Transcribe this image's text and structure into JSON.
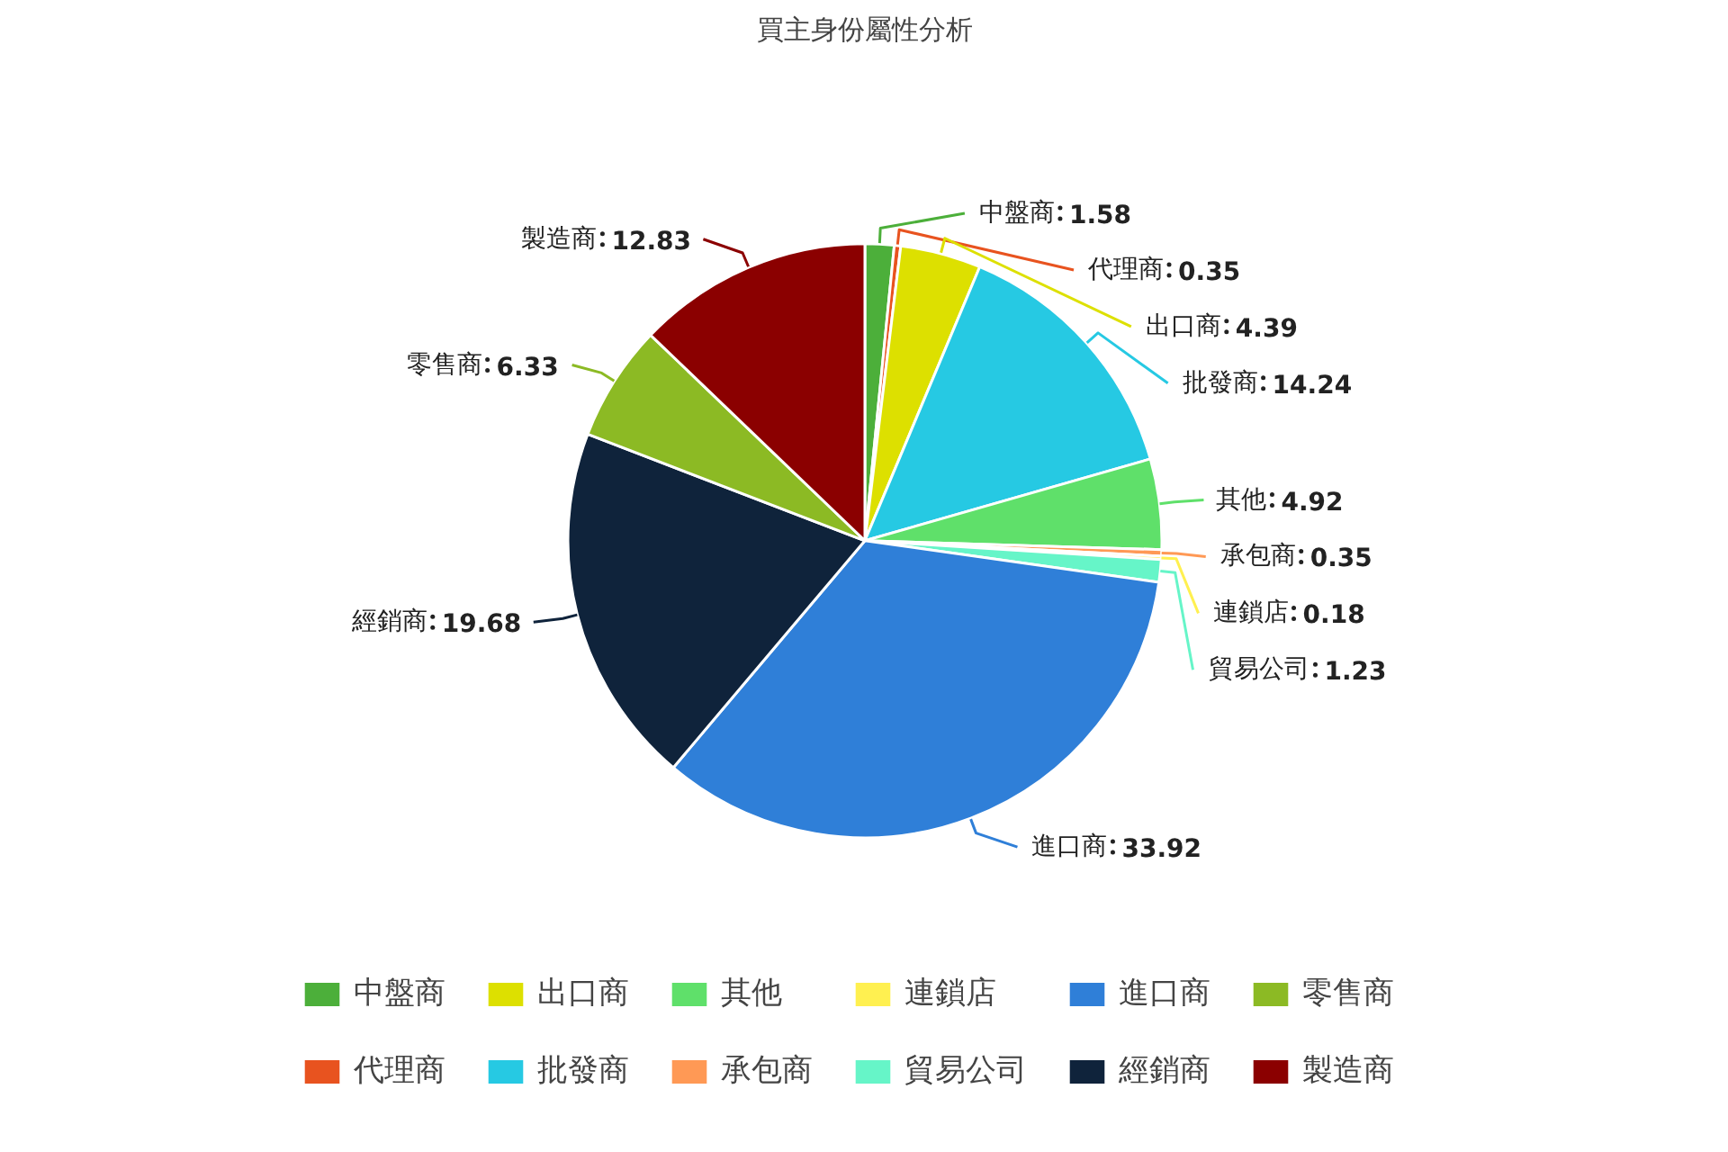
{
  "chart_data": {
    "type": "pie",
    "title": "買主身份屬性分析",
    "categories": [
      "中盤商",
      "代理商",
      "出口商",
      "批發商",
      "其他",
      "承包商",
      "連鎖店",
      "貿易公司",
      "進口商",
      "經銷商",
      "零售商",
      "製造商"
    ],
    "values": [
      1.58,
      0.35,
      4.39,
      14.24,
      4.92,
      0.35,
      0.18,
      1.23,
      33.92,
      19.68,
      6.33,
      12.83
    ],
    "colors": [
      "#4caf3a",
      "#e8531f",
      "#dde000",
      "#26c9e3",
      "#5fe06a",
      "#ff9955",
      "#fff050",
      "#66f5c8",
      "#2f7fd8",
      "#0f233b",
      "#8cba24",
      "#8b0000"
    ],
    "data_labels": true,
    "legend": "bottom"
  }
}
